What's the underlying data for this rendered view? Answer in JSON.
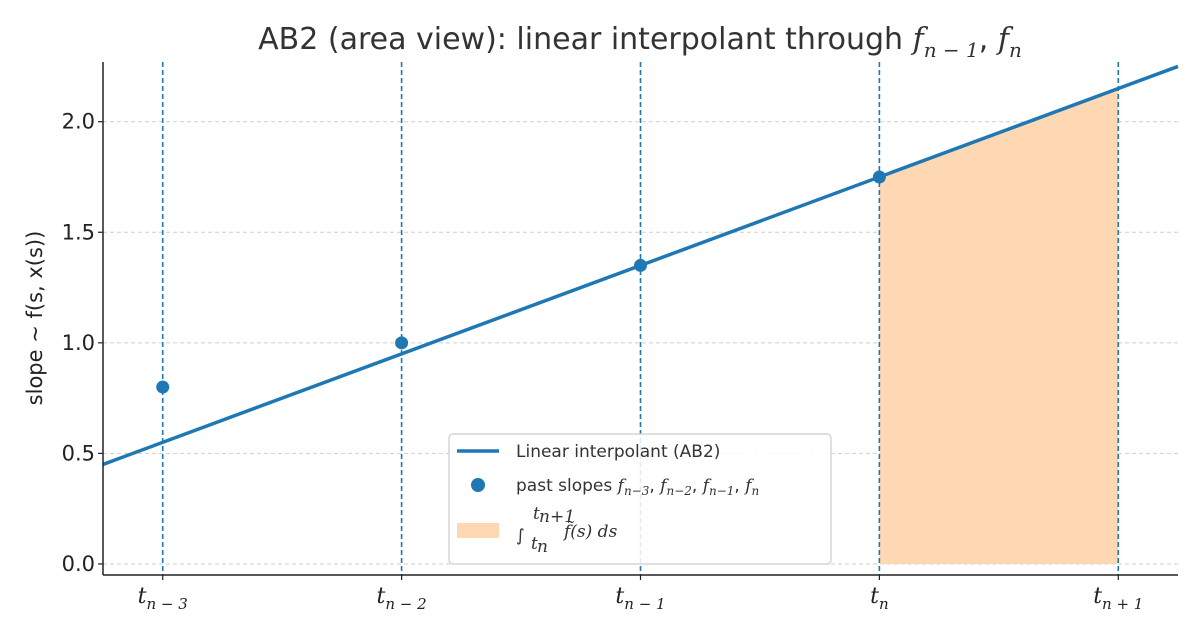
{
  "chart_data": {
    "type": "line",
    "title_prefix": "AB2 (area view): linear interpolant through ",
    "title_math": [
      "f",
      "n − 1",
      "f",
      "n"
    ],
    "ylabel": "slope ~ f(s, x(s))",
    "xlim": [
      -0.25,
      4.25
    ],
    "ylim": [
      -0.05,
      2.27
    ],
    "yticks": [
      0.0,
      0.5,
      1.0,
      1.5,
      2.0
    ],
    "ytick_labels": [
      "0.0",
      "0.5",
      "1.0",
      "1.5",
      "2.0"
    ],
    "xticks": [
      {
        "x": 0,
        "base": "t",
        "sub": "n − 3"
      },
      {
        "x": 1,
        "base": "t",
        "sub": "n − 2"
      },
      {
        "x": 2,
        "base": "t",
        "sub": "n − 1"
      },
      {
        "x": 3,
        "base": "t",
        "sub": "n"
      },
      {
        "x": 4,
        "base": "t",
        "sub": "n + 1"
      }
    ],
    "vlines_x": [
      0,
      1,
      2,
      3,
      4
    ],
    "line": {
      "name": "Linear interpolant (AB2)",
      "slope": 0.4,
      "intercept": 0.55,
      "color": "#1f77b4"
    },
    "points": {
      "name_prefix": "past slopes ",
      "x": [
        0,
        1,
        2,
        3
      ],
      "y": [
        0.8,
        1.0,
        1.35,
        1.75
      ],
      "color": "#1f77b4"
    },
    "area": {
      "x_from": 3,
      "x_to": 4,
      "color": "#fdd8b2"
    },
    "legend": {
      "placement": "lower-center",
      "line_label": "Linear interpolant (AB2)",
      "points_label_prefix": "past slopes ",
      "points_label_math": "f n−3, f n−2, f n−1, f n",
      "area_label": "∫ from t n to t n+1 of f̃(s) ds"
    },
    "grid": "horizontal-dashed"
  }
}
